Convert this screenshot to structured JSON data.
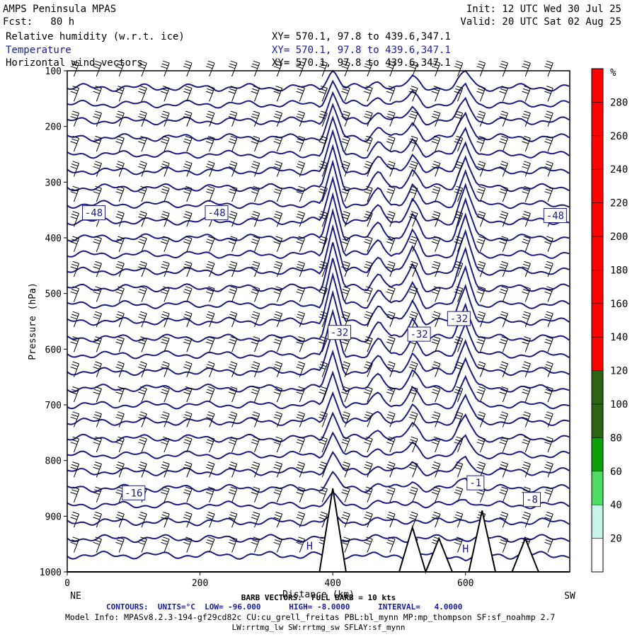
{
  "header": {
    "title": "AMPS Peninsula MPAS",
    "forecast": "Fcst:   80 h",
    "init": "Init: 12 UTC Wed 30 Jul 25",
    "valid": "Valid: 20 UTC Sat 02 Aug 25",
    "fields": [
      {
        "label": "Relative humidity (w.r.t. ice)",
        "xy": "XY= 570.1, 97.8 to 439.6,347.1"
      },
      {
        "label": "Temperature",
        "xy": "XY= 570.1, 97.8 to 439.6,347.1"
      },
      {
        "label": "Horizontal wind vectors",
        "xy": "XY= 570.1, 97.8 to 439.6,347.1"
      }
    ]
  },
  "footer": {
    "barb": "BARB VECTORS:  FULL BARB = 10 kts",
    "contours": "CONTOURS:  UNITS=°C  LOW= -96.000      HIGH= -8.0000      INTERVAL=   4.0000",
    "model_info": "Model Info: MPASv8.2.3-194-gf29cd82c CU:cu_grell_freitas PBL:bl_mynn MP:mp_thompson SF:sf_noahmp 2.7",
    "model_info2": "LW:rrtmg_lw SW:rrtmg_sw SFLAY:sf_mynn"
  },
  "colors": {
    "contour": "#1c1c80",
    "rh_scale": [
      "#ffffff",
      "#ffffff",
      "#c8f5ea",
      "#7ce6c8",
      "#50dc64",
      "#3cc83c",
      "#0ca00c",
      "#0a780a",
      "#2a6414",
      "#5a4a14",
      "#ff0000"
    ]
  },
  "chart_data": {
    "type": "heatmap",
    "xlabel": "Distance (km)",
    "ylabel": "Pressure (hPa)",
    "xlim": [
      0,
      757
    ],
    "ylim": [
      1000,
      100
    ],
    "x_ticks": [
      0,
      200,
      400,
      600
    ],
    "y_ticks": [
      100,
      200,
      300,
      400,
      500,
      600,
      700,
      800,
      900,
      1000
    ],
    "x_end_labels": {
      "left": "NE",
      "right": "SW"
    },
    "colorbar": {
      "unit": "%",
      "ticks": [
        20,
        40,
        60,
        80,
        100,
        120,
        140,
        160,
        180,
        200,
        220,
        240,
        260,
        280
      ]
    },
    "temperature_contour_labels": [
      {
        "x": 40,
        "p": 355,
        "text": "-48"
      },
      {
        "x": 225,
        "p": 355,
        "text": "-48"
      },
      {
        "x": 735,
        "p": 360,
        "text": "-48"
      },
      {
        "x": 410,
        "p": 570,
        "text": "-32"
      },
      {
        "x": 530,
        "p": 573,
        "text": "-32"
      },
      {
        "x": 590,
        "p": 545,
        "text": "-32"
      },
      {
        "x": 100,
        "p": 858,
        "text": "-16"
      },
      {
        "x": 615,
        "p": 840,
        "text": "-1"
      },
      {
        "x": 700,
        "p": 870,
        "text": "-8"
      }
    ],
    "markers": [
      {
        "x": 365,
        "p": 960,
        "text": "H"
      },
      {
        "x": 600,
        "p": 965,
        "text": "H"
      }
    ]
  }
}
